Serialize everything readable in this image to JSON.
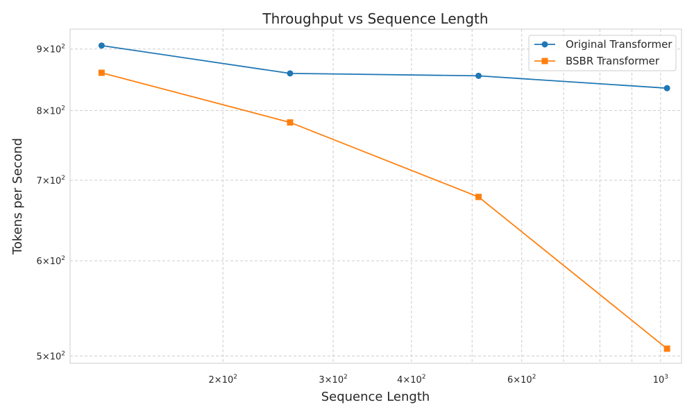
{
  "chart_data": {
    "type": "line",
    "title": "Throughput vs Sequence Length",
    "xlabel": "Sequence Length",
    "ylabel": "Tokens per Second",
    "xscale": "log",
    "yscale": "log",
    "xlim": [
      114,
      1080
    ],
    "ylim": [
      493,
      935
    ],
    "x": [
      128,
      256,
      512,
      1024
    ],
    "x_ticks": [
      {
        "value": 200,
        "mantissa": "2",
        "base": "10",
        "exp": "2"
      },
      {
        "value": 300,
        "mantissa": "3",
        "base": "10",
        "exp": "2"
      },
      {
        "value": 400,
        "mantissa": "4",
        "base": "10",
        "exp": "2"
      },
      {
        "value": 600,
        "mantissa": "6",
        "base": "10",
        "exp": "2"
      },
      {
        "value": 1000,
        "mantissa": "",
        "base": "10",
        "exp": "3"
      }
    ],
    "x_minor_grid": [
      500,
      700,
      800,
      900
    ],
    "y_ticks": [
      {
        "value": 500,
        "mantissa": "5",
        "base": "10",
        "exp": "2"
      },
      {
        "value": 600,
        "mantissa": "6",
        "base": "10",
        "exp": "2"
      },
      {
        "value": 700,
        "mantissa": "7",
        "base": "10",
        "exp": "2"
      },
      {
        "value": 800,
        "mantissa": "8",
        "base": "10",
        "exp": "2"
      },
      {
        "value": 900,
        "mantissa": "9",
        "base": "10",
        "exp": "2"
      }
    ],
    "series": [
      {
        "name": "Original Transformer",
        "values": [
          906,
          859,
          855,
          835
        ],
        "color": "#1f77b4",
        "marker": "circle"
      },
      {
        "name": "BSBR Transformer",
        "values": [
          860,
          782,
          678,
          507
        ],
        "color": "#ff7f0e",
        "marker": "square"
      }
    ],
    "grid": true,
    "legend": "top-right"
  }
}
